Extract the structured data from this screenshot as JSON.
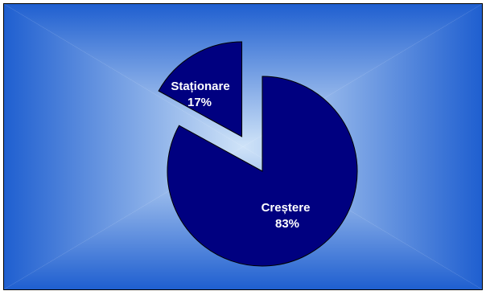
{
  "chart_data": {
    "type": "pie",
    "title": "",
    "slices": [
      {
        "label": "Creștere",
        "percent_label": "83%",
        "value": 83,
        "exploded": false
      },
      {
        "label": "Staționare",
        "percent_label": "17%",
        "value": 17,
        "exploded": true
      }
    ],
    "legend": "none",
    "colors": {
      "slice_fill": "#000080",
      "slice_stroke": "#000000",
      "label_text": "#ffffff",
      "background_center": "#cfe3f8",
      "background_edge": "#1f5fd0"
    }
  }
}
